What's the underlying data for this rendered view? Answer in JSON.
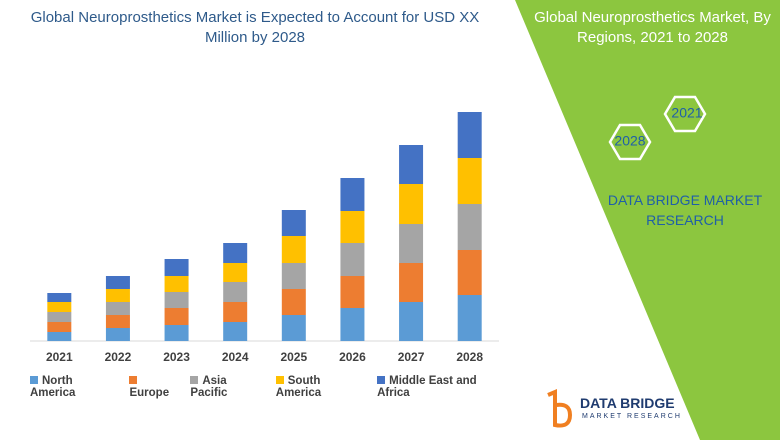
{
  "chart_data": {
    "type": "stacked-bar",
    "title": "Global Neuroprosthetics Market is Expected to Account for USD XX Million by 2028",
    "categories": [
      "2021",
      "2022",
      "2023",
      "2024",
      "2025",
      "2026",
      "2027",
      "2028"
    ],
    "series": [
      {
        "name": "North America",
        "color": "#5b9bd5",
        "values": [
          9,
          13,
          16,
          19,
          26,
          33,
          39,
          46
        ]
      },
      {
        "name": "Europe",
        "color": "#ed7d31",
        "values": [
          10,
          13,
          17,
          20,
          26,
          32,
          39,
          45
        ]
      },
      {
        "name": "Asia Pacific",
        "color": "#a5a5a5",
        "values": [
          10,
          13,
          16,
          20,
          26,
          33,
          39,
          46
        ]
      },
      {
        "name": "South America",
        "color": "#ffc000",
        "values": [
          10,
          13,
          16,
          19,
          27,
          32,
          40,
          46
        ]
      },
      {
        "name": "Middle East and Africa",
        "color": "#4472c4",
        "values": [
          9,
          13,
          17,
          20,
          26,
          33,
          39,
          46
        ]
      }
    ],
    "ylim": [
      0,
      250
    ]
  },
  "side_panel": {
    "title": "Global Neuroprosthetics Market, By Regions, 2021 to 2028",
    "hex_labels": [
      "2021",
      "2028"
    ],
    "brand": "DATA BRIDGE MARKET RESEARCH"
  },
  "logo": {
    "name": "DATA BRIDGE",
    "tagline": "MARKET RESEARCH"
  }
}
